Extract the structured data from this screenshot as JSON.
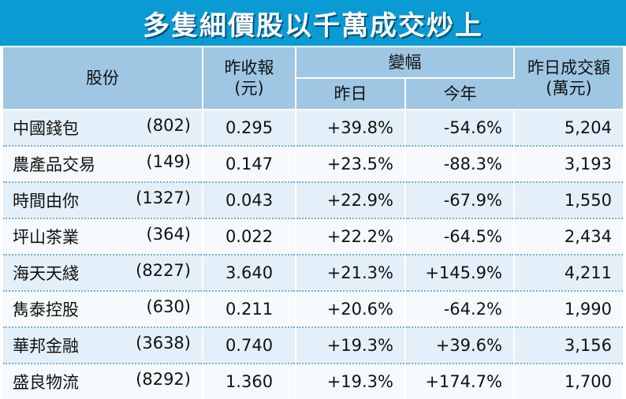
{
  "title": "多隻細價股以千萬成交炒上",
  "headers": {
    "stock": "股份",
    "prev_close_line1": "昨收報",
    "prev_close_line2": "(元)",
    "change": "變幅",
    "change_yesterday": "昨日",
    "change_ytd": "今年",
    "turnover_line1": "昨日成交額",
    "turnover_line2": "(萬元)"
  },
  "rows": [
    {
      "name": "中國錢包",
      "code": "(802)",
      "close": "0.295",
      "yday": "+39.8%",
      "ytd": "-54.6%",
      "turnover": "5,204"
    },
    {
      "name": "農產品交易",
      "code": "(149)",
      "close": "0.147",
      "yday": "+23.5%",
      "ytd": "-88.3%",
      "turnover": "3,193"
    },
    {
      "name": "時間由你",
      "code": "(1327)",
      "close": "0.043",
      "yday": "+22.9%",
      "ytd": "-67.9%",
      "turnover": "1,550"
    },
    {
      "name": "坪山茶業",
      "code": "(364)",
      "close": "0.022",
      "yday": "+22.2%",
      "ytd": "-64.5%",
      "turnover": "2,434"
    },
    {
      "name": "海天天綫",
      "code": "(8227)",
      "close": "3.640",
      "yday": "+21.3%",
      "ytd": "+145.9%",
      "turnover": "4,211"
    },
    {
      "name": "雋泰控股",
      "code": "(630)",
      "close": "0.211",
      "yday": "+20.6%",
      "ytd": "-64.2%",
      "turnover": "1,990"
    },
    {
      "name": "華邦金融",
      "code": "(3638)",
      "close": "0.740",
      "yday": "+19.3%",
      "ytd": "+39.6%",
      "turnover": "3,156"
    },
    {
      "name": "盛良物流",
      "code": "(8292)",
      "close": "1.360",
      "yday": "+19.3%",
      "ytd": "+174.7%",
      "turnover": "1,700"
    }
  ],
  "colors": {
    "title_bg": "#0a9ad4",
    "header_bg": "#9fc7e4",
    "row_even": "#e4f0f9",
    "row_odd": "#f6fafd",
    "divider": "#7aaed0"
  }
}
